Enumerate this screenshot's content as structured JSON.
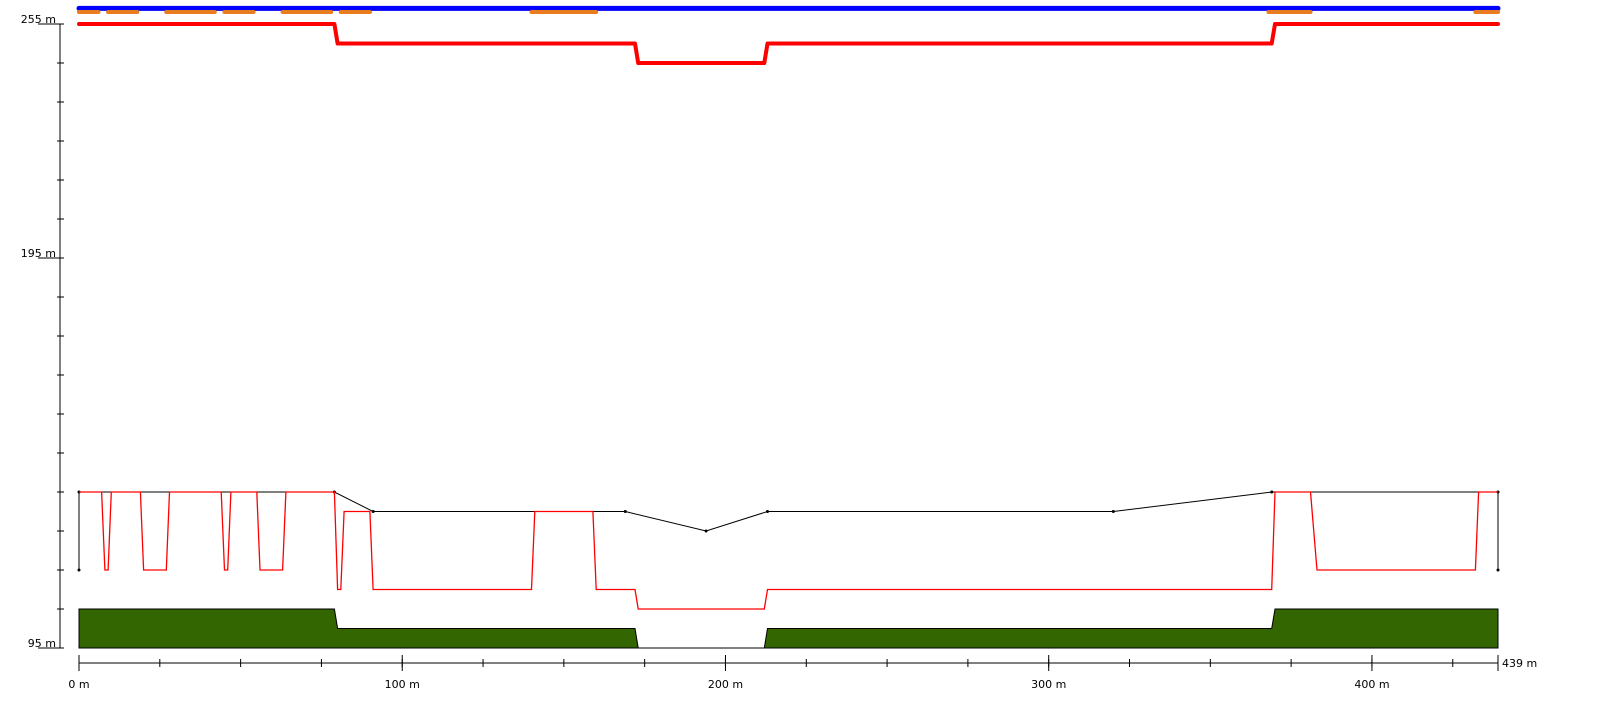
{
  "chart_data": {
    "type": "line",
    "x_axis": {
      "unit": "m",
      "range": [
        0,
        439
      ],
      "labeled_ticks": [
        {
          "value": 0,
          "label": "0 m"
        },
        {
          "value": 100,
          "label": "100 m"
        },
        {
          "value": 200,
          "label": "200 m"
        },
        {
          "value": 300,
          "label": "300 m"
        },
        {
          "value": 400,
          "label": "400 m"
        },
        {
          "value": 439,
          "label": "439 m"
        }
      ],
      "minor_tick_step": 25
    },
    "y_axis": {
      "unit": "m",
      "range": [
        95,
        255
      ],
      "labeled_ticks": [
        {
          "value": 255,
          "label": "255 m"
        },
        {
          "value": 195,
          "label": "195 m"
        },
        {
          "value": 95,
          "label": "95 m"
        }
      ],
      "minor_tick_step": 10
    },
    "colors": {
      "blue_band": "#0000ff",
      "orange_band": "#e87c1e",
      "red_band": "#ff0000",
      "red_line": "#ff0000",
      "black_line": "#000000",
      "terrain_fill": "#336600"
    },
    "series": [
      {
        "style": "blue_band",
        "points": [
          [
            0,
            259
          ],
          [
            439,
            259
          ]
        ]
      },
      {
        "style": "orange_dashes",
        "segments": [
          [
            0,
            6
          ],
          [
            9,
            18
          ],
          [
            27,
            42
          ],
          [
            45,
            54
          ],
          [
            63,
            78
          ],
          [
            81,
            90
          ],
          [
            140,
            160
          ],
          [
            368,
            381
          ],
          [
            432,
            439
          ]
        ]
      },
      {
        "style": "red_band",
        "points": [
          [
            0,
            255
          ],
          [
            79,
            255
          ],
          [
            80,
            250
          ],
          [
            172,
            250
          ],
          [
            173,
            245
          ],
          [
            212,
            245
          ],
          [
            213,
            250
          ],
          [
            369,
            250
          ],
          [
            370,
            255
          ],
          [
            439,
            255
          ]
        ]
      },
      {
        "style": "black_line",
        "points": [
          [
            0,
            115
          ],
          [
            0,
            135
          ],
          [
            79,
            135
          ],
          [
            91,
            130
          ],
          [
            169,
            130
          ],
          [
            194,
            125
          ],
          [
            213,
            130
          ],
          [
            320,
            130
          ],
          [
            369,
            135
          ],
          [
            439,
            135
          ],
          [
            439,
            115
          ]
        ]
      },
      {
        "style": "red_line",
        "points": [
          [
            0,
            135
          ],
          [
            7,
            135
          ],
          [
            8,
            115
          ],
          [
            9,
            115
          ],
          [
            10,
            135
          ],
          [
            19,
            135
          ],
          [
            20,
            115
          ],
          [
            27,
            115
          ],
          [
            28,
            135
          ],
          [
            44,
            135
          ],
          [
            45,
            115
          ],
          [
            46,
            115
          ],
          [
            47,
            135
          ],
          [
            55,
            135
          ],
          [
            56,
            115
          ],
          [
            63,
            115
          ],
          [
            64,
            135
          ],
          [
            79,
            135
          ],
          [
            80,
            110
          ],
          [
            81,
            110
          ],
          [
            82,
            130
          ],
          [
            90,
            130
          ],
          [
            91,
            110
          ],
          [
            140,
            110
          ],
          [
            141,
            130
          ],
          [
            159,
            130
          ],
          [
            160,
            110
          ],
          [
            172,
            110
          ],
          [
            173,
            105
          ],
          [
            212,
            105
          ],
          [
            213,
            110
          ],
          [
            369,
            110
          ],
          [
            370,
            135
          ],
          [
            381,
            135
          ],
          [
            383,
            115
          ],
          [
            432,
            115
          ],
          [
            433,
            135
          ],
          [
            439,
            135
          ]
        ]
      },
      {
        "style": "terrain_area",
        "points": [
          [
            0,
            105
          ],
          [
            79,
            105
          ],
          [
            80,
            100
          ],
          [
            172,
            100
          ],
          [
            173,
            95
          ],
          [
            212,
            95
          ],
          [
            213,
            100
          ],
          [
            369,
            100
          ],
          [
            370,
            105
          ],
          [
            439,
            105
          ]
        ]
      }
    ]
  }
}
